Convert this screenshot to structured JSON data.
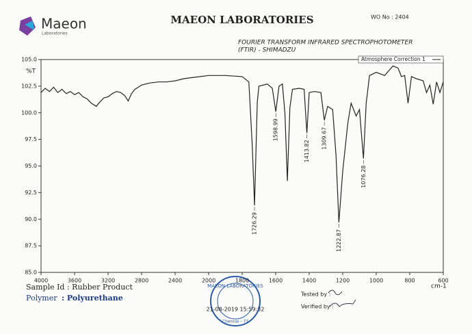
{
  "header": {
    "logo_name": "Maeon",
    "logo_sub": "Laboratories",
    "title": "MAEON LABORATORIES",
    "wo_no": "WO No : 2404",
    "instrument_line1": "FOURIER TRANSFORM INFRARED SPECTROPHOTOMETER",
    "instrument_line2": "(FTIR) - SHIMADZU"
  },
  "chart_data": {
    "type": "line",
    "ylabel": "%T",
    "xlabel": "cm-1",
    "legend": "top-right",
    "grid": false,
    "series": [
      {
        "name": "Atmosphere Correction 1",
        "color": "#222222",
        "x": [
          4000,
          3950,
          3900,
          3850,
          3800,
          3750,
          3700,
          3650,
          3600,
          3550,
          3500,
          3450,
          3400,
          3340,
          3300,
          3250,
          3200,
          3150,
          3100,
          3050,
          3000,
          2960,
          2920,
          2880,
          2800,
          2700,
          2600,
          2500,
          2400,
          2300,
          2200,
          2100,
          2000,
          1900,
          1800,
          1760,
          1740,
          1726.29,
          1710,
          1700,
          1650,
          1620,
          1598.99,
          1580,
          1560,
          1545,
          1530,
          1515,
          1500,
          1460,
          1430,
          1413.82,
          1400,
          1370,
          1330,
          1309.67,
          1290,
          1260,
          1240,
          1222.87,
          1200,
          1170,
          1150,
          1120,
          1100,
          1076.28,
          1060,
          1040,
          1000,
          950,
          900,
          870,
          850,
          830,
          810,
          790,
          760,
          720,
          700,
          680,
          660,
          640,
          620,
          600
        ],
        "values": [
          101.9,
          102.3,
          102.0,
          102.4,
          101.9,
          102.2,
          101.8,
          102.0,
          101.7,
          101.9,
          101.5,
          101.3,
          100.9,
          100.6,
          101.0,
          101.4,
          101.5,
          101.8,
          102.0,
          101.9,
          101.6,
          101.1,
          101.8,
          102.2,
          102.6,
          102.8,
          102.9,
          102.9,
          103.0,
          103.2,
          103.3,
          103.4,
          103.5,
          103.5,
          103.4,
          102.9,
          97.0,
          91.3,
          101.0,
          102.5,
          102.7,
          102.3,
          100.1,
          102.5,
          102.7,
          100.0,
          93.6,
          100.5,
          102.2,
          102.3,
          102.2,
          98.1,
          101.9,
          102.0,
          101.9,
          99.3,
          100.6,
          100.3,
          96.0,
          89.7,
          94.5,
          99.0,
          100.9,
          99.7,
          100.3,
          95.7,
          100.9,
          103.5,
          103.8,
          103.5,
          104.4,
          104.2,
          103.4,
          103.5,
          100.9,
          103.4,
          103.2,
          103.0,
          101.9,
          102.6,
          100.8,
          102.9,
          101.9,
          102.9
        ]
      }
    ],
    "peaks": [
      1726.29,
      1598.99,
      1413.82,
      1309.67,
      1222.87,
      1076.28
    ],
    "xlim": [
      4000,
      600
    ],
    "xticks": [
      4000,
      3600,
      3200,
      2800,
      2400,
      2000,
      1800,
      1600,
      1400,
      1200,
      1000,
      800,
      600
    ],
    "ylim": [
      85,
      105
    ],
    "yticks": [
      {
        "value": 85,
        "label": "85.0"
      },
      {
        "value": 87.5,
        "label": "87.5"
      },
      {
        "value": 90,
        "label": "90.0"
      },
      {
        "value": 92.5,
        "label": "92.5"
      },
      {
        "value": 95,
        "label": "95.0"
      },
      {
        "value": 97.5,
        "label": "97.5"
      },
      {
        "value": 100,
        "label": "100.0"
      },
      {
        "value": 102.5,
        "label": "102.5"
      },
      {
        "value": 105,
        "label": "105.0"
      }
    ]
  },
  "footer": {
    "sample": "Sample Id : Rubber Product",
    "polymer_label": "Polymer",
    "polymer_value": ": Polyurethane",
    "tested_by": "Tested by :",
    "verified_by": "Verified by :",
    "stamp_top": "MAEON LABORATORIES",
    "stamp_bottom": "Chennai - 77",
    "timestamp": "21-08-2019 15:59:32"
  }
}
